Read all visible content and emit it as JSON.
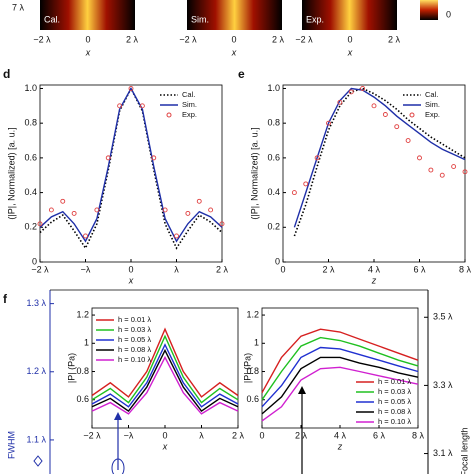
{
  "header_strip": {
    "ytick": "7 λ",
    "xlabel": "x",
    "xticks": [
      "−2 λ",
      "0",
      "2 λ"
    ],
    "colorbar_tick": "0",
    "panels": [
      {
        "label": "Cal."
      },
      {
        "label": "Sim."
      },
      {
        "label": "Exp."
      }
    ]
  },
  "chart_data": [
    {
      "type": "line",
      "panel": "d",
      "xlabel": "x",
      "ylabel": "(|P|, Normalized) [a. u.]",
      "x": [
        -2,
        -1.75,
        -1.5,
        -1.25,
        -1,
        -0.75,
        -0.5,
        -0.25,
        0,
        0.25,
        0.5,
        0.75,
        1,
        1.25,
        1.5,
        1.75,
        2
      ],
      "xlim": [
        -2,
        2
      ],
      "ylim": [
        0,
        1.02
      ],
      "xticks": [
        {
          "value": -2,
          "label": "−2 λ"
        },
        {
          "value": -1,
          "label": "−λ"
        },
        0,
        {
          "value": 1,
          "label": "λ"
        },
        {
          "value": 2,
          "label": "2 λ"
        }
      ],
      "yticks": [
        0,
        0.2,
        0.4,
        0.6,
        0.8,
        {
          "value": 1,
          "label": "1.0"
        }
      ],
      "legend": "upper right",
      "series": [
        {
          "name": "Cal.",
          "color": "#000000",
          "style": "dotted",
          "values": [
            0.17,
            0.23,
            0.27,
            0.18,
            0.08,
            0.22,
            0.53,
            0.87,
            1.0,
            0.87,
            0.53,
            0.22,
            0.08,
            0.18,
            0.27,
            0.23,
            0.17
          ]
        },
        {
          "name": "Sim.",
          "color": "#1f2fa8",
          "style": "solid",
          "values": [
            0.2,
            0.26,
            0.29,
            0.22,
            0.12,
            0.25,
            0.55,
            0.88,
            1.0,
            0.88,
            0.55,
            0.25,
            0.12,
            0.22,
            0.29,
            0.26,
            0.2
          ]
        },
        {
          "name": "Exp.",
          "color": "#e04040",
          "style": "markers",
          "values": [
            0.22,
            0.3,
            0.35,
            0.28,
            0.15,
            0.3,
            0.6,
            0.9,
            1.0,
            0.9,
            0.6,
            0.3,
            0.15,
            0.28,
            0.35,
            0.3,
            0.22
          ]
        }
      ]
    },
    {
      "type": "line",
      "panel": "e",
      "xlabel": "z",
      "ylabel": "(|P|, Normalized) [a. u.]",
      "x": [
        0.5,
        1,
        1.5,
        2,
        2.5,
        3,
        3.5,
        4,
        4.5,
        5,
        5.5,
        6,
        6.5,
        7,
        7.5,
        8
      ],
      "xlim": [
        0,
        8
      ],
      "ylim": [
        0,
        1.02
      ],
      "xticks": [
        0,
        {
          "value": 2,
          "label": "2 λ"
        },
        {
          "value": 4,
          "label": "4 λ"
        },
        {
          "value": 6,
          "label": "6 λ"
        },
        {
          "value": 8,
          "label": "8 λ"
        }
      ],
      "yticks": [
        0,
        0.2,
        0.4,
        0.6,
        0.8,
        {
          "value": 1,
          "label": "1.0"
        }
      ],
      "legend": "upper right",
      "series": [
        {
          "name": "Cal.",
          "color": "#000000",
          "style": "dotted",
          "values": [
            0.15,
            0.33,
            0.55,
            0.76,
            0.9,
            0.98,
            1.0,
            0.97,
            0.93,
            0.88,
            0.82,
            0.77,
            0.72,
            0.68,
            0.64,
            0.6
          ]
        },
        {
          "name": "Sim.",
          "color": "#1f2fa8",
          "style": "solid",
          "values": [
            0.2,
            0.4,
            0.6,
            0.8,
            0.93,
            1.0,
            0.99,
            0.95,
            0.9,
            0.84,
            0.79,
            0.74,
            0.69,
            0.65,
            0.62,
            0.59
          ]
        },
        {
          "name": "Exp.",
          "color": "#e04040",
          "style": "markers",
          "values": [
            0.4,
            0.45,
            0.6,
            0.8,
            0.92,
            0.98,
            1.0,
            0.9,
            0.85,
            0.78,
            0.7,
            0.6,
            0.53,
            0.5,
            0.55,
            0.52
          ]
        }
      ]
    },
    {
      "type": "line",
      "panel": "f",
      "xlabel": "x",
      "ylabel": "|P| (Pa)",
      "x": [
        -2,
        -1.5,
        -1,
        -0.5,
        0,
        0.5,
        1,
        1.5,
        2
      ],
      "xlim": [
        -2,
        2
      ],
      "ylim": [
        0.4,
        1.25
      ],
      "xticks": [
        {
          "value": -2,
          "label": "−2 λ"
        },
        {
          "value": -1,
          "label": "−λ"
        },
        0,
        {
          "value": 1,
          "label": "λ"
        },
        {
          "value": 2,
          "label": "2 λ"
        }
      ],
      "yticks": [
        0.6,
        0.8,
        1,
        1.2
      ],
      "legend": "upper left",
      "series": [
        {
          "name": "h = 0.01 λ",
          "color": "#d62020",
          "style": "solid",
          "values": [
            0.63,
            0.72,
            0.62,
            0.8,
            1.1,
            0.8,
            0.62,
            0.72,
            0.63
          ]
        },
        {
          "name": "h = 0.03 λ",
          "color": "#20c020",
          "style": "solid",
          "values": [
            0.6,
            0.68,
            0.58,
            0.76,
            1.05,
            0.76,
            0.58,
            0.68,
            0.6
          ]
        },
        {
          "name": "h = 0.05 λ",
          "color": "#2030d0",
          "style": "solid",
          "values": [
            0.57,
            0.64,
            0.55,
            0.72,
            0.99,
            0.72,
            0.55,
            0.64,
            0.57
          ]
        },
        {
          "name": "h = 0.08 λ",
          "color": "#000000",
          "style": "solid",
          "values": [
            0.55,
            0.61,
            0.52,
            0.69,
            0.95,
            0.69,
            0.52,
            0.61,
            0.55
          ]
        },
        {
          "name": "h = 0.10 λ",
          "color": "#d020d0",
          "style": "solid",
          "values": [
            0.52,
            0.58,
            0.5,
            0.65,
            0.9,
            0.65,
            0.5,
            0.58,
            0.52
          ]
        }
      ]
    },
    {
      "type": "line",
      "xlabel": "z",
      "ylabel": "|P| (Pa)",
      "x": [
        0,
        1,
        2,
        3,
        4,
        5,
        6,
        7,
        8
      ],
      "xlim": [
        0,
        8
      ],
      "ylim": [
        0.4,
        1.25
      ],
      "xticks": [
        0,
        {
          "value": 2,
          "label": "2 λ"
        },
        {
          "value": 4,
          "label": "4 λ"
        },
        {
          "value": 6,
          "label": "6 λ"
        },
        {
          "value": 8,
          "label": "8 λ"
        }
      ],
      "yticks": [
        0.6,
        0.8,
        1,
        1.2
      ],
      "legend": "lower right",
      "series": [
        {
          "name": "h = 0.01 λ",
          "color": "#d62020",
          "style": "solid",
          "values": [
            0.65,
            0.9,
            1.05,
            1.1,
            1.08,
            1.03,
            0.98,
            0.93,
            0.88
          ]
        },
        {
          "name": "h = 0.03 λ",
          "color": "#20c020",
          "style": "solid",
          "values": [
            0.6,
            0.8,
            0.98,
            1.04,
            1.02,
            0.98,
            0.93,
            0.88,
            0.84
          ]
        },
        {
          "name": "h = 0.05 λ",
          "color": "#2030d0",
          "style": "solid",
          "values": [
            0.55,
            0.7,
            0.9,
            0.97,
            0.96,
            0.92,
            0.88,
            0.84,
            0.8
          ]
        },
        {
          "name": "h = 0.08 λ",
          "color": "#000000",
          "style": "solid",
          "values": [
            0.5,
            0.62,
            0.82,
            0.9,
            0.9,
            0.86,
            0.83,
            0.79,
            0.76
          ]
        },
        {
          "name": "h = 0.10 λ",
          "color": "#d020d0",
          "style": "solid",
          "values": [
            0.45,
            0.55,
            0.74,
            0.82,
            0.83,
            0.8,
            0.77,
            0.74,
            0.71
          ]
        }
      ]
    },
    {
      "type": "dual-axis",
      "ylabel": "FWHM",
      "y2label": "Focal length",
      "color": "#1f2fa8",
      "ylim": [
        1.05,
        1.32
      ],
      "yticks": [
        {
          "value": 1.1,
          "label": "1.1 λ"
        },
        {
          "value": 1.2,
          "label": "1.2 λ"
        },
        {
          "value": 1.3,
          "label": "1.3 λ"
        }
      ],
      "y2lim": [
        3.04,
        3.58
      ],
      "y2ticks": [
        {
          "value": 3.1,
          "label": "3.1 λ"
        },
        {
          "value": 3.3,
          "label": "3.3 λ"
        },
        {
          "value": 3.5,
          "label": "3.5 λ"
        }
      ]
    }
  ]
}
